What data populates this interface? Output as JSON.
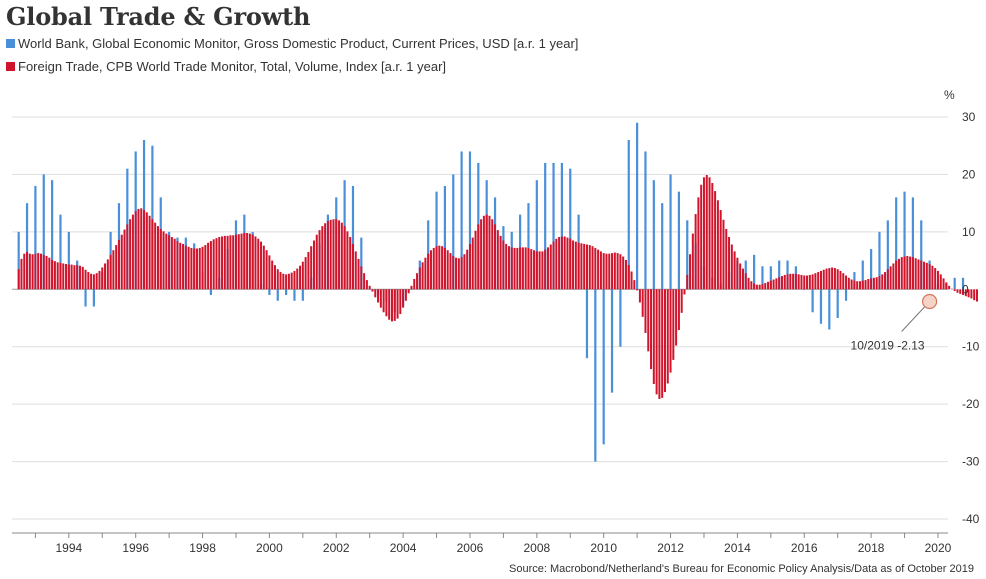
{
  "chart_data": {
    "type": "bar",
    "title": "Global Trade & Growth",
    "y_unit_label": "%",
    "ylim": [
      -40,
      30
    ],
    "y_ticks": [
      30,
      20,
      10,
      0,
      -10,
      -20,
      -30,
      -40
    ],
    "x_range": [
      1992.3,
      2020.3
    ],
    "x_ticks": [
      "1994",
      "1996",
      "1998",
      "2000",
      "2002",
      "2004",
      "2006",
      "2008",
      "2010",
      "2012",
      "2014",
      "2016",
      "2018",
      "2020"
    ],
    "grid": true,
    "legend_position": "top-left",
    "source": "Source: Macrobond/Netherland's Bureau for Economic Policy Analysis/Data as of October 2019",
    "annotation": {
      "label": "10/2019 -2.13",
      "date": "2019-10",
      "value": -2.13
    },
    "series": [
      {
        "name": "World Bank, Global Economic Monitor, Gross Domestic Product, Current Prices, USD [a.r. 1 year]",
        "color": "#4a90d9",
        "frequency": "quarterly",
        "start": "1992-Q3",
        "values": [
          10,
          15,
          18,
          20,
          19,
          13,
          10,
          5,
          -3,
          -3,
          3,
          10,
          15,
          21,
          24,
          26,
          25,
          16,
          10,
          9,
          9,
          8,
          3,
          -1,
          2,
          7,
          12,
          13,
          10,
          1,
          -1,
          -2,
          -1,
          -2,
          -2,
          2,
          8,
          13,
          16,
          19,
          18,
          9,
          0,
          -1,
          -2,
          -4,
          -3,
          0,
          5,
          12,
          17,
          18,
          20,
          24,
          24,
          22,
          19,
          16,
          11,
          10,
          13,
          15,
          19,
          22,
          22,
          22,
          21,
          13,
          -12,
          -30,
          -27,
          -18,
          -10,
          26,
          29,
          24,
          19,
          15,
          20,
          17,
          12,
          8,
          4,
          2,
          1,
          3,
          5,
          5,
          6,
          4,
          4,
          5,
          5,
          4,
          0,
          -4,
          -6,
          -7,
          -5,
          -2,
          3,
          5,
          7,
          10,
          12,
          16,
          17,
          16,
          12,
          5,
          1,
          1,
          2,
          2
        ]
      },
      {
        "name": "Foreign Trade, CPB World Trade Monitor, Total, Volume, Index [a.r. 1 year]",
        "color": "#d0142c",
        "frequency": "monthly",
        "start": "1992-07",
        "values": [
          3.5,
          5.3,
          6.2,
          6.5,
          6.2,
          6.1,
          6.2,
          6.3,
          6.2,
          6,
          5.8,
          5.5,
          5.1,
          4.9,
          4.7,
          4.6,
          4.5,
          4.4,
          4.3,
          4.3,
          4.2,
          4.2,
          4.1,
          3.9,
          3.4,
          3,
          2.7,
          2.6,
          2.8,
          3.2,
          3.8,
          4.5,
          5.2,
          6,
          6.8,
          7.7,
          8.6,
          9.5,
          10.4,
          11.3,
          12.2,
          13,
          13.6,
          14,
          14.1,
          13.8,
          13.4,
          12.8,
          12.2,
          11.6,
          11,
          10.5,
          10.1,
          9.7,
          9.4,
          9.1,
          8.8,
          8.4,
          8.1,
          7.9,
          7.6,
          7.4,
          7.2,
          7.1,
          7.1,
          7.2,
          7.4,
          7.7,
          8.1,
          8.4,
          8.7,
          8.9,
          9.1,
          9.2,
          9.3,
          9.3,
          9.4,
          9.4,
          9.5,
          9.6,
          9.7,
          9.8,
          9.8,
          9.7,
          9.5,
          9.2,
          8.8,
          8.3,
          7.6,
          6.8,
          5.9,
          5,
          4.2,
          3.5,
          3,
          2.7,
          2.6,
          2.7,
          2.9,
          3.2,
          3.6,
          4.1,
          4.8,
          5.6,
          6.5,
          7.5,
          8.5,
          9.5,
          10.3,
          11,
          11.5,
          11.9,
          12.1,
          12.2,
          12.2,
          12,
          11.6,
          11,
          10.1,
          9.1,
          7.9,
          6.6,
          5.3,
          4,
          2.8,
          1.6,
          0.6,
          -0.4,
          -1.4,
          -2.3,
          -3.2,
          -4,
          -4.7,
          -5.3,
          -5.6,
          -5.5,
          -5.1,
          -4.3,
          -3.2,
          -2,
          -0.7,
          0.6,
          1.8,
          2.8,
          3.8,
          4.7,
          5.5,
          6.2,
          6.8,
          7.2,
          7.5,
          7.6,
          7.5,
          7.2,
          6.8,
          6.3,
          5.8,
          5.5,
          5.4,
          5.6,
          6.1,
          6.9,
          7.9,
          9,
          10.2,
          11.3,
          12.2,
          12.8,
          13,
          12.8,
          12.2,
          11.3,
          10.3,
          9.3,
          8.5,
          7.9,
          7.5,
          7.3,
          7.2,
          7.2,
          7.3,
          7.3,
          7.3,
          7.2,
          7,
          6.8,
          6.6,
          6.6,
          6.6,
          6.9,
          7.3,
          7.8,
          8.3,
          8.8,
          9.1,
          9.2,
          9.2,
          9,
          8.8,
          8.5,
          8.3,
          8.1,
          8,
          7.9,
          7.8,
          7.7,
          7.5,
          7.2,
          6.9,
          6.6,
          6.3,
          6.2,
          6.2,
          6.3,
          6.4,
          6.3,
          6.1,
          5.7,
          5.1,
          4.2,
          3.1,
          1.6,
          -0.2,
          -2.3,
          -4.8,
          -7.6,
          -10.8,
          -13.9,
          -16.5,
          -18.3,
          -19.1,
          -18.9,
          -17.9,
          -16.4,
          -14.5,
          -12.3,
          -9.8,
          -7.1,
          -4.1,
          -0.9,
          2.5,
          6.1,
          9.7,
          13.1,
          16,
          18.2,
          19.5,
          19.9,
          19.5,
          18.5,
          17.1,
          15.5,
          13.8,
          12.1,
          10.5,
          9.1,
          7.8,
          6.6,
          5.5,
          4.5,
          3.6,
          2.8,
          2,
          1.4,
          1,
          0.8,
          0.8,
          0.9,
          1.1,
          1.3,
          1.5,
          1.7,
          1.9,
          2.1,
          2.3,
          2.5,
          2.6,
          2.7,
          2.7,
          2.7,
          2.6,
          2.5,
          2.4,
          2.4,
          2.5,
          2.6,
          2.8,
          3,
          3.2,
          3.4,
          3.6,
          3.7,
          3.8,
          3.7,
          3.5,
          3.2,
          2.8,
          2.4,
          2,
          1.7,
          1.5,
          1.4,
          1.4,
          1.5,
          1.6,
          1.8,
          1.9,
          2,
          2.1,
          2.3,
          2.6,
          3,
          3.5,
          4,
          4.5,
          5,
          5.3,
          5.6,
          5.7,
          5.8,
          5.7,
          5.6,
          5.4,
          5.2,
          5,
          4.8,
          4.6,
          4.4,
          4.1,
          3.7,
          3.2,
          2.6,
          1.9,
          1.2,
          0.6,
          0.1,
          -0.3,
          -0.6,
          -0.8,
          -1,
          -1.2,
          -1.4,
          -1.6,
          -1.9,
          -2.13
        ]
      }
    ]
  }
}
